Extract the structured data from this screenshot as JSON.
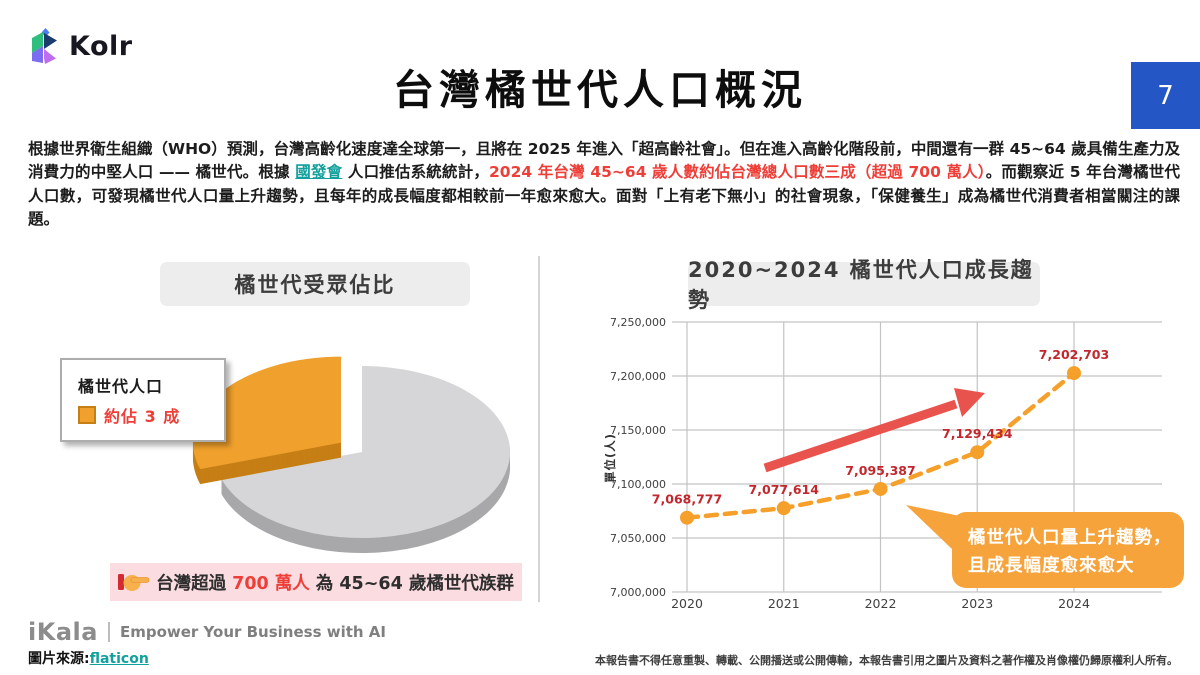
{
  "header": {
    "logo_text": "Kolr",
    "title": "台灣橘世代人口概況",
    "page_number": "7"
  },
  "intro": {
    "segments": [
      {
        "text": "根據世界衛生組織（WHO）預測，台灣高齡化速度達全球第一，且將在 2025 年進入「超高齡社會」。但在進入高齡化階段前，中間還有一群 45~64 歲具備生產力及消費力的中堅人口 —— 橘世代。根據 ",
        "style": "normal"
      },
      {
        "text": "國發會",
        "style": "link"
      },
      {
        "text": " 人口推估系統統計，",
        "style": "normal"
      },
      {
        "text": "2024 年台灣 45~64 歲人數約佔台灣總人口數三成（超過 700 萬人）",
        "style": "red"
      },
      {
        "text": "。而觀察近 5 年台灣橘世代人口數，可發現橘世代人口量上升趨勢，且每年的成長幅度都相較前一年愈來愈大。面對「上有老下無小」的社會現象，「保健養生」成為橘世代消費者相當關注的課題。",
        "style": "normal"
      }
    ]
  },
  "left_panel": {
    "header": "橘世代受眾佔比",
    "legend": {
      "title": "橘世代人口",
      "value_label": "約佔 3 成"
    },
    "banner": {
      "prefix": "台灣超過 ",
      "highlight": "700 萬人",
      "suffix": " 為 45~64 歲橘世代族群"
    }
  },
  "right_panel": {
    "header": "2020~2024 橘世代人口成長趨勢",
    "callout_line1": "橘世代人口量上升趨勢，",
    "callout_line2": "且成長幅度愈來愈大"
  },
  "chart_data": [
    {
      "type": "pie",
      "title": "橘世代受眾佔比",
      "slices": [
        {
          "label": "橘世代人口",
          "fraction": 0.3,
          "color": "#F0A02C",
          "side_color": "#C67F15"
        },
        {
          "label": "",
          "fraction": 0.7,
          "color": "#D6D6D8",
          "side_color": "#A8A8AB"
        }
      ],
      "note": "約佔 3 成",
      "exploded_slice": "橘世代人口"
    },
    {
      "type": "line",
      "title": "2020~2024 橘世代人口成長趨勢",
      "categories": [
        "2020",
        "2021",
        "2022",
        "2023",
        "2024"
      ],
      "values": [
        7068777,
        7077614,
        7095387,
        7129434,
        7202703
      ],
      "ylabel": "單位(人)",
      "ylim": [
        7000000,
        7250000
      ],
      "ytick_step": 50000,
      "grid": true,
      "line_color": "#F5A02B",
      "label_color": "#C2272D",
      "annotation_arrow_color": "#E9534E",
      "callout_color": "#F7A33B"
    }
  ],
  "footer": {
    "brand": "iKala",
    "tagline": "Empower Your Business with AI",
    "image_source_label": "圖片來源:",
    "image_source_link": "flaticon",
    "disclaimer": "本報告書不得任意重製、轉載、公開播送或公開傳輸，本報告書引用之圖片及資料之著作權及肖像權仍歸原權利人所有。"
  }
}
